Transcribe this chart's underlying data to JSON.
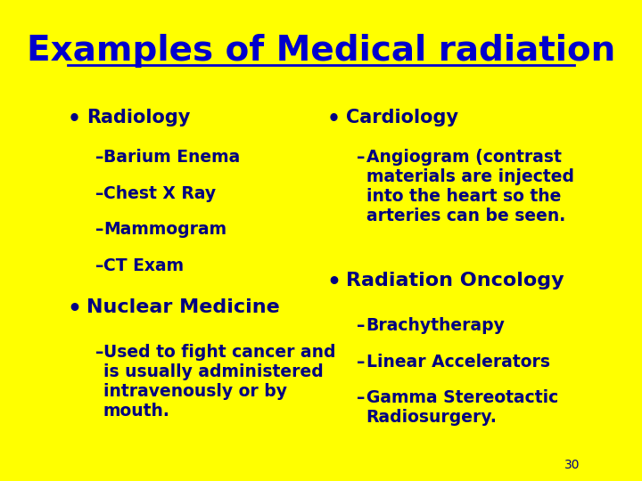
{
  "background_color": "#FFFF00",
  "title": "Examples of Medical radiation",
  "title_color": "#0000CC",
  "title_fontsize": 28,
  "text_color": "#000080",
  "body_fontsize": 15,
  "sub_fontsize": 13.5,
  "page_number": "30",
  "left_col": {
    "bullet1": "Radiology",
    "bullet1_subs": [
      "Barium Enema",
      "Chest X Ray",
      "Mammogram",
      "CT Exam"
    ],
    "bullet2": "Nuclear Medicine",
    "bullet2_subs": [
      "Used to fight cancer and\nis usually administered\nintravenously or by\nmouth."
    ]
  },
  "right_col": {
    "bullet1": "Cardiology",
    "bullet1_subs": [
      "Angiogram (contrast\nmaterials are injected\ninto the heart so the\narteries can be seen."
    ],
    "bullet2": "Radiation Oncology",
    "bullet2_subs": [
      "Brachytherapy",
      "Linear Accelerators",
      "Gamma Stereotactic\nRadiosurgery."
    ]
  }
}
